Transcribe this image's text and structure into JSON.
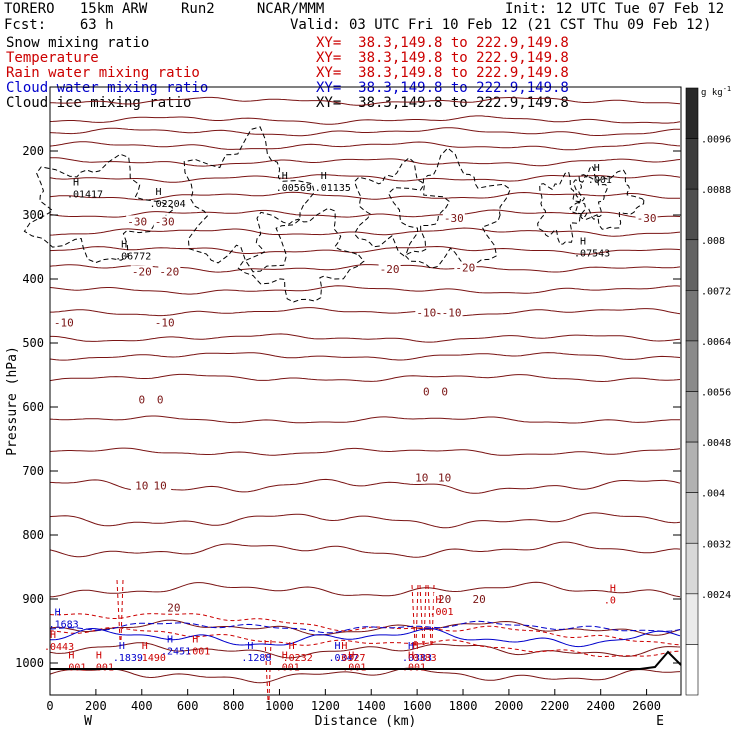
{
  "header": {
    "model_label": "TORERO   15km ARW    Run2     NCAR/MMM",
    "init_label": "Init: 12 UTC Tue 07 Feb 12",
    "fcst_label": "Fcst:    63 h",
    "valid_label": "Valid: 03 UTC Fri 10 Feb 12 (21 CST Thu 09 Feb 12)"
  },
  "fields": [
    {
      "name": "Snow mixing ratio",
      "xy": "XY=  38.3,149.8 to 222.9,149.8",
      "color": "#000000"
    },
    {
      "name": "Temperature",
      "xy": "XY=  38.3,149.8 to 222.9,149.8",
      "color": "#cc0000"
    },
    {
      "name": "Rain water mixing ratio",
      "xy": "XY=  38.3,149.8 to 222.9,149.8",
      "color": "#cc0000"
    },
    {
      "name": "Cloud water mixing ratio",
      "xy": "XY=  38.3,149.8 to 222.9,149.8",
      "color": "#0000cc"
    },
    {
      "name": "Cloud ice mixing ratio",
      "xy": "XY=  38.3,149.8 to 222.9,149.8",
      "color": "#000000"
    }
  ],
  "colors": {
    "temperature": "#7a1414",
    "freezing_line": "#6e0000",
    "rain": "#cc0000",
    "cloud_water": "#0000cc",
    "snow": "#000000",
    "cloud_ice": "#000000"
  },
  "colorbar": {
    "unit": "g kg",
    "unit_exp": "-1",
    "ticks": [
      ".0096",
      ".0088",
      ".008",
      ".0072",
      ".0064",
      ".0056",
      ".0048",
      ".004",
      ".0032",
      ".0024"
    ]
  },
  "chart_data": {
    "type": "contour",
    "xlabel": "Distance (km)",
    "ylabel": "Pressure (hPa)",
    "xlim": [
      0,
      2750
    ],
    "ylim": [
      1050,
      100
    ],
    "xticks": [
      "0",
      "200",
      "400",
      "600",
      "800",
      "1000",
      "1200",
      "1400",
      "1600",
      "1800",
      "2000",
      "2200",
      "2400",
      "2600"
    ],
    "yticks": [
      "200",
      "300",
      "400",
      "500",
      "600",
      "700",
      "800",
      "900",
      "1000"
    ],
    "end_labels": {
      "left": "W",
      "right": "E"
    },
    "temperature_labels": [
      {
        "text": "-30",
        "x": 380,
        "p": 310
      },
      {
        "text": "-30",
        "x": 500,
        "p": 310
      },
      {
        "text": "-30",
        "x": 1760,
        "p": 305
      },
      {
        "text": "-30",
        "x": 2600,
        "p": 305
      },
      {
        "text": "-20",
        "x": 400,
        "p": 388
      },
      {
        "text": "-20",
        "x": 520,
        "p": 388
      },
      {
        "text": "-20",
        "x": 1480,
        "p": 384
      },
      {
        "text": "-20",
        "x": 1810,
        "p": 382
      },
      {
        "text": "-10",
        "x": 60,
        "p": 468
      },
      {
        "text": "-10",
        "x": 500,
        "p": 468
      },
      {
        "text": "-10",
        "x": 1640,
        "p": 452
      },
      {
        "text": "-10",
        "x": 1750,
        "p": 452
      },
      {
        "text": "0",
        "x": 400,
        "p": 588
      },
      {
        "text": "0",
        "x": 480,
        "p": 588
      },
      {
        "text": "0",
        "x": 1640,
        "p": 576
      },
      {
        "text": "0",
        "x": 1720,
        "p": 576
      },
      {
        "text": "10",
        "x": 400,
        "p": 723
      },
      {
        "text": "10",
        "x": 480,
        "p": 723
      },
      {
        "text": "10",
        "x": 1620,
        "p": 710
      },
      {
        "text": "10",
        "x": 1720,
        "p": 710
      },
      {
        "text": "20",
        "x": 540,
        "p": 913
      },
      {
        "text": "20",
        "x": 1720,
        "p": 900
      },
      {
        "text": "20",
        "x": 1870,
        "p": 900
      }
    ],
    "maxima": [
      {
        "text": ".01417",
        "x": 100,
        "p": 268,
        "field": "snow"
      },
      {
        "text": ".02204",
        "x": 460,
        "p": 283,
        "field": "snow"
      },
      {
        "text": ".06772",
        "x": 310,
        "p": 365,
        "field": "snow"
      },
      {
        "text": ".00569",
        "x": 1010,
        "p": 258,
        "field": "ice"
      },
      {
        "text": ".01135",
        "x": 1180,
        "p": 258,
        "field": "ice"
      },
      {
        "text": ".001",
        "x": 2370,
        "p": 245,
        "field": "snow"
      },
      {
        "text": ".07543",
        "x": 2310,
        "p": 360,
        "field": "snow"
      },
      {
        "text": ".1683",
        "x": 20,
        "p": 940,
        "field": "cloud_water"
      },
      {
        "text": ".0443",
        "x": 0,
        "p": 975,
        "field": "rain"
      },
      {
        "text": ".1839",
        "x": 300,
        "p": 992,
        "field": "cloud_water"
      },
      {
        "text": ".1490",
        "x": 400,
        "p": 992,
        "field": "rain"
      },
      {
        "text": ".2451",
        "x": 510,
        "p": 982,
        "field": "cloud_water"
      },
      {
        "text": ".001",
        "x": 620,
        "p": 982,
        "field": "rain"
      },
      {
        "text": ".1288",
        "x": 860,
        "p": 992,
        "field": "cloud_water"
      },
      {
        "text": ".0232",
        "x": 1040,
        "p": 992,
        "field": "rain"
      },
      {
        "text": ".0347",
        "x": 1240,
        "p": 992,
        "field": "cloud_water"
      },
      {
        "text": ".0327",
        "x": 1270,
        "p": 992,
        "field": "rain"
      },
      {
        "text": ".0383",
        "x": 1560,
        "p": 992,
        "field": "cloud_water"
      },
      {
        "text": ".0383",
        "x": 1580,
        "p": 992,
        "field": "rain"
      },
      {
        "text": ".001",
        "x": 1680,
        "p": 920,
        "field": "rain"
      },
      {
        "text": ".0",
        "x": 2440,
        "p": 902,
        "field": "rain"
      },
      {
        "text": ".001",
        "x": 80,
        "p": 1007,
        "field": "rain"
      },
      {
        "text": ".001",
        "x": 200,
        "p": 1007,
        "field": "rain"
      },
      {
        "text": ".001",
        "x": 1010,
        "p": 1007,
        "field": "rain"
      },
      {
        "text": ".001",
        "x": 1300,
        "p": 1007,
        "field": "rain"
      },
      {
        "text": ".001",
        "x": 1560,
        "p": 1007,
        "field": "rain"
      }
    ],
    "grid": false,
    "legend": "top-left"
  }
}
